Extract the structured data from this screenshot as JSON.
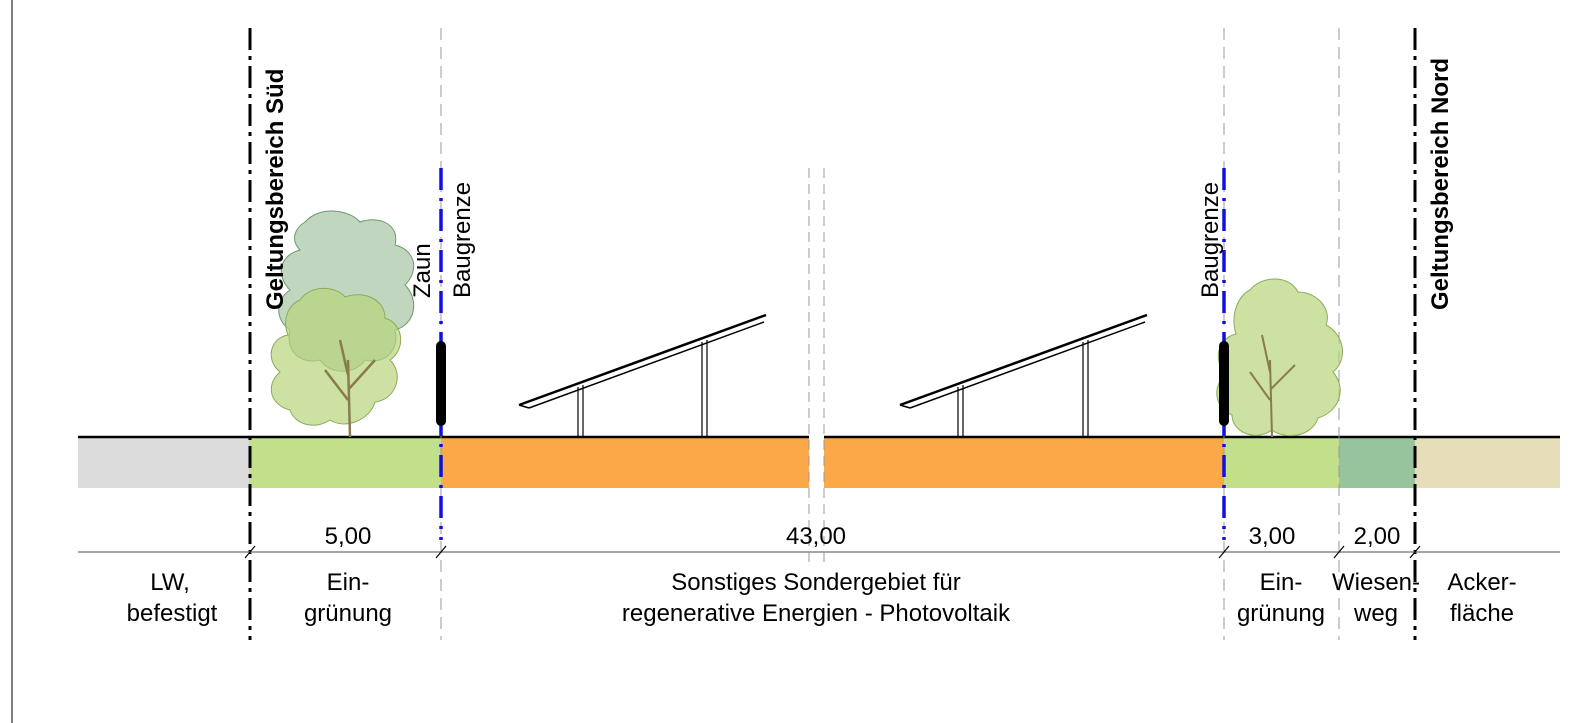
{
  "boundaries": {
    "south": "Geltungsbereich Süd",
    "north": "Geltungsbereich Nord"
  },
  "structures": {
    "fence": "Zaun",
    "building_line_left": "Baugrenze",
    "building_line_right": "Baugrenze"
  },
  "dimensions": {
    "green_left": "5,00",
    "solar_zone": "43,00",
    "green_right": "3,00",
    "meadow_path": "2,00"
  },
  "zones": {
    "road": {
      "line1": "LW,",
      "line2": "befestigt"
    },
    "green_left": {
      "line1": "Ein-",
      "line2": "grünung"
    },
    "solar": {
      "line1": "Sonstiges Sondergebiet für",
      "line2": "regenerative Energien - Photovoltaik"
    },
    "green_right": {
      "line1": "Ein-",
      "line2": "grünung"
    },
    "meadow": {
      "line1": "Wiesen-",
      "line2": "weg"
    },
    "field": {
      "line1": "Acker-",
      "line2": "fläche"
    }
  },
  "colors": {
    "road": "#dcdcdc",
    "greening": "#c2e08a",
    "solar": "#fba848",
    "meadow": "#97c49c",
    "field": "#e6ddb9",
    "building_line": "#1010e0",
    "tree_dark": "#8cb48a",
    "tree_light": "#b8d47a"
  }
}
